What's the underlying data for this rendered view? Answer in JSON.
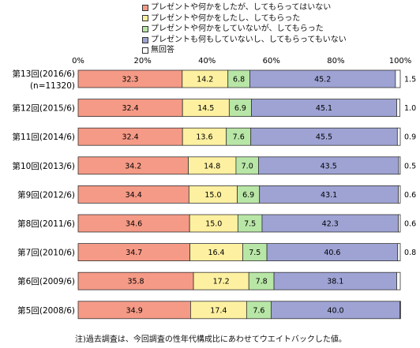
{
  "chart_data": {
    "type": "bar",
    "orientation": "horizontal",
    "stacked": true,
    "percent_scale": true,
    "xlim": [
      0,
      100
    ],
    "x_ticks": [
      "0%",
      "20%",
      "40%",
      "60%",
      "80%",
      "100%"
    ],
    "grid": false,
    "legend_position": "top",
    "categories": [
      "第13回(2016/6)",
      "第12回(2015/6)",
      "第11回(2014/6)",
      "第10回(2013/6)",
      "第9回(2012/6)",
      "第8回(2011/6)",
      "第7回(2010/6)",
      "第6回(2009/6)",
      "第5回(2008/6)"
    ],
    "category_sublabels": [
      "(n=11320)",
      "",
      "",
      "",
      "",
      "",
      "",
      "",
      ""
    ],
    "series": [
      {
        "name": "プレゼントや何かをしたが、してもらってはいない",
        "color": "#f59a86",
        "values": [
          32.3,
          32.4,
          32.4,
          34.2,
          34.4,
          34.6,
          34.7,
          35.8,
          34.9
        ]
      },
      {
        "name": "プレゼントや何かをしたし、してもらった",
        "color": "#fdf0a0",
        "values": [
          14.2,
          14.5,
          13.6,
          14.8,
          15.0,
          15.0,
          16.4,
          17.2,
          17.4
        ]
      },
      {
        "name": "プレゼントや何かをしていないが、してもらった",
        "color": "#b8e6a6",
        "values": [
          6.8,
          6.9,
          7.6,
          7.0,
          6.9,
          7.5,
          7.5,
          7.8,
          7.6
        ]
      },
      {
        "name": "プレゼントも何もしていないし、してもらってもいない",
        "color": "#9ea3d4",
        "values": [
          45.2,
          45.1,
          45.5,
          43.5,
          43.1,
          42.3,
          40.6,
          38.1,
          40.0
        ]
      },
      {
        "name": "無回答",
        "color": "#ffffff",
        "values": [
          1.5,
          1.0,
          0.9,
          0.5,
          0.6,
          0.6,
          0.8,
          1.1,
          0.2
        ]
      }
    ],
    "value_labels": {
      "segments": [
        [
          "32.3",
          "14.2",
          "6.8",
          "45.2"
        ],
        [
          "32.4",
          "14.5",
          "6.9",
          "45.1"
        ],
        [
          "32.4",
          "13.6",
          "7.6",
          "45.5"
        ],
        [
          "34.2",
          "14.8",
          "7.0",
          "43.5"
        ],
        [
          "34.4",
          "15.0",
          "6.9",
          "43.1"
        ],
        [
          "34.6",
          "15.0",
          "7.5",
          "42.3"
        ],
        [
          "34.7",
          "16.4",
          "7.5",
          "40.6"
        ],
        [
          "35.8",
          "17.2",
          "7.8",
          "38.1"
        ],
        [
          "34.9",
          "17.4",
          "7.6",
          "40.0"
        ]
      ],
      "outside": [
        "1.5",
        "1.0",
        "0.9",
        "0.5",
        "0.6",
        "0.6",
        "0.8",
        "",
        ""
      ]
    },
    "note": "注)過去調査は、今回調査の性年代構成比にあわせてウエイトバックした値。"
  }
}
